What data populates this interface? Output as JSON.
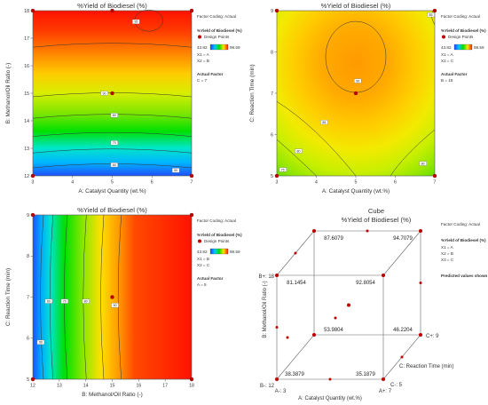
{
  "chart_data": [
    {
      "type": "heatmap",
      "title": "%Yield of Biodiesel (%)",
      "xlabel": "A: Catalyst Quantity (wt.%)",
      "ylabel": "B: Methanol/Oil Ratio (-)",
      "xlim": [
        3,
        7
      ],
      "ylim": [
        12,
        18
      ],
      "xticks": [
        "3",
        "4",
        "5",
        "6",
        "7"
      ],
      "yticks": [
        "12",
        "13",
        "14",
        "15",
        "16",
        "17",
        "18"
      ],
      "contour_labels": [
        {
          "x": 4.8,
          "y": 15.0,
          "label": "90"
        },
        {
          "x": 5.6,
          "y": 17.6,
          "label": "95"
        },
        {
          "x": 5.05,
          "y": 14.2,
          "label": "80"
        },
        {
          "x": 5.05,
          "y": 13.2,
          "label": "70"
        },
        {
          "x": 5.05,
          "y": 12.4,
          "label": "60"
        },
        {
          "x": 6.6,
          "y": 12.2,
          "label": "50"
        }
      ],
      "design_points": [
        [
          3,
          18
        ],
        [
          5,
          15
        ],
        [
          7,
          12
        ],
        [
          3,
          12
        ],
        [
          7,
          18
        ],
        [
          5,
          18
        ]
      ],
      "legend": {
        "title": "%Yield of Biodiesel (%)",
        "marker": "Design Points",
        "min": "43.82",
        "max": "98.59",
        "x1": "X1 = A",
        "x2": "X2 = B"
      },
      "factor_coding": "Factor Coding: Actual",
      "actual_factor": {
        "title": "Actual Factor",
        "value": "C = 7"
      }
    },
    {
      "type": "heatmap",
      "title": "%Yield of Biodiesel (%)",
      "xlabel": "A: Catalyst Quantity (wt.%)",
      "ylabel": "C: Reaction Time (min)",
      "xlim": [
        3,
        7
      ],
      "ylim": [
        5,
        9
      ],
      "xticks": [
        "3",
        "4",
        "5",
        "6",
        "7"
      ],
      "yticks": [
        "5",
        "6",
        "7",
        "8",
        "9"
      ],
      "contour_labels": [
        {
          "x": 5.05,
          "y": 7.3,
          "label": "90"
        },
        {
          "x": 4.2,
          "y": 6.3,
          "label": "85"
        },
        {
          "x": 3.55,
          "y": 5.6,
          "label": "80"
        },
        {
          "x": 3.15,
          "y": 5.15,
          "label": "75"
        },
        {
          "x": 6.7,
          "y": 5.3,
          "label": "80"
        },
        {
          "x": 6.9,
          "y": 8.9,
          "label": "85"
        }
      ],
      "design_points": [
        [
          5,
          7
        ],
        [
          3,
          5
        ],
        [
          7,
          5
        ],
        [
          3,
          9
        ],
        [
          7,
          9
        ]
      ],
      "legend": {
        "title": "%Yield of Biodiesel (%)",
        "marker": "Design Points",
        "min": "43.82",
        "max": "98.59",
        "x1": "X1 = A",
        "x2": "X2 = C"
      },
      "factor_coding": "Factor Coding: Actual",
      "actual_factor": {
        "title": "Actual Factor",
        "value": "B = 15"
      }
    },
    {
      "type": "heatmap",
      "title": "%Yield of Biodiesel (%)",
      "xlabel": "B: Methanol/Oil Ratio (-)",
      "ylabel": "C: Reaction Time (min)",
      "xlim": [
        12,
        18
      ],
      "ylim": [
        5,
        9
      ],
      "xticks": [
        "12",
        "13",
        "14",
        "15",
        "16",
        "17",
        "18"
      ],
      "yticks": [
        "5",
        "6",
        "7",
        "8",
        "9"
      ],
      "contour_labels": [
        {
          "x": 12.3,
          "y": 5.9,
          "label": "50"
        },
        {
          "x": 12.6,
          "y": 6.9,
          "label": "60"
        },
        {
          "x": 13.2,
          "y": 6.9,
          "label": "70"
        },
        {
          "x": 14.0,
          "y": 6.9,
          "label": "80"
        },
        {
          "x": 15.1,
          "y": 6.8,
          "label": "90"
        }
      ],
      "design_points": [
        [
          15,
          7
        ],
        [
          12,
          5
        ],
        [
          18,
          5
        ],
        [
          12,
          9
        ],
        [
          18,
          9
        ]
      ],
      "legend": {
        "title": "%Yield of Biodiesel (%)",
        "marker": "Design Points",
        "min": "43.82",
        "max": "98.59",
        "x1": "X1 = B",
        "x2": "X2 = C"
      },
      "factor_coding": "Factor Coding: Actual",
      "actual_factor": {
        "title": "Actual Factor",
        "value": "A = 5"
      }
    },
    {
      "type": "cube",
      "title": "Cube",
      "subtitle": "%Yield of Biodiesel (%)",
      "xlabel": "A: Catalyst Quantity (wt.%)",
      "ylabel": "B: Methanol/Oil Ratio (-)",
      "zlabel": "C: Reaction Time (min)",
      "corners": {
        "A-B+C+": "87.6079",
        "A+B+C+": "94.7079",
        "A-B+C-": "81.1454",
        "A+B+C-": "92.8054",
        "A-B-C+": "53.9804",
        "A+B-C+": "46.2204",
        "A-B-C-": "38.3879",
        "A+B-C-": "35.1879"
      },
      "axis_labels": {
        "a_low": "A-: 3",
        "a_high": "A+: 7",
        "b_low": "B-: 12",
        "b_high": "B+: 18",
        "c_low": "C-: 5",
        "c_high": "C+: 9"
      },
      "legend": {
        "title": "%Yield of Biodiesel (%)",
        "x1": "X1 = A",
        "x2": "X2 = B",
        "x3": "X3 = C"
      },
      "factor_coding": "Factor Coding: Actual",
      "note": "Predicted values shown"
    }
  ]
}
